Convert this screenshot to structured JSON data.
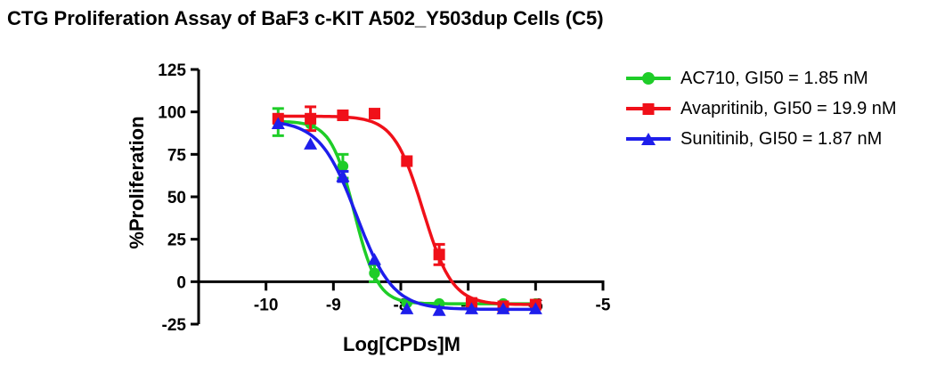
{
  "title": "CTG Proliferation Assay of BaF3 c-KIT A502_Y503dup Cells (C5)",
  "chart_data": {
    "type": "scatter",
    "title": "CTG Proliferation Assay of BaF3 c-KIT A502_Y503dup Cells (C5)",
    "xlabel": "Log[CPDs]M",
    "ylabel": "%Proliferation",
    "xlim": [
      -11,
      -5
    ],
    "ylim": [
      -25,
      125
    ],
    "x_ticks": [
      -10,
      -9,
      -8,
      -7,
      -6,
      -5
    ],
    "y_ticks": [
      125,
      100,
      75,
      50,
      25,
      0,
      -25
    ],
    "grid": false,
    "legend_position": "top-right",
    "x": [
      -9.82,
      -9.34,
      -8.86,
      -8.39,
      -7.91,
      -7.43,
      -6.95,
      -6.48,
      -6.0
    ],
    "series": [
      {
        "name": "AC710",
        "gi50": "1.85 nM",
        "legend_label": "AC710, GI50 = 1.85 nM",
        "color": "#1ECD28",
        "marker": "circle",
        "values": [
          94,
          93,
          68,
          5,
          -12.5,
          -13,
          -13,
          -13,
          -13
        ],
        "errors": [
          8,
          0,
          7,
          5,
          0,
          0,
          0,
          0,
          0
        ],
        "fit": {
          "top": 94.5,
          "bottom": -13,
          "log50": -8.69,
          "hill": 2.5
        }
      },
      {
        "name": "Avapritinib",
        "gi50": "19.9 nM",
        "legend_label": "Avapritinib, GI50 = 19.9 nM",
        "color": "#F01019",
        "marker": "square",
        "values": [
          96,
          96,
          98,
          99,
          71,
          16,
          -12.5,
          -14.5,
          -13.5
        ],
        "errors": [
          0,
          7,
          0,
          0,
          0,
          6,
          0,
          0,
          0
        ],
        "fit": {
          "top": 97.5,
          "bottom": -13.5,
          "log50": -7.67,
          "hill": 2.0
        }
      },
      {
        "name": "Sunitinib",
        "gi50": "1.87 nM",
        "legend_label": "Sunitinib, GI50 = 1.87 nM",
        "color": "#1E1EEB",
        "marker": "triangle",
        "values": [
          93,
          81,
          62,
          13,
          -16,
          -17,
          -16,
          -16,
          -16
        ],
        "errors": [
          0,
          0,
          3,
          0,
          0,
          0,
          0,
          0,
          0
        ],
        "fit": {
          "top": 95,
          "bottom": -16.3,
          "log50": -8.66,
          "hill": 1.6
        }
      }
    ]
  }
}
